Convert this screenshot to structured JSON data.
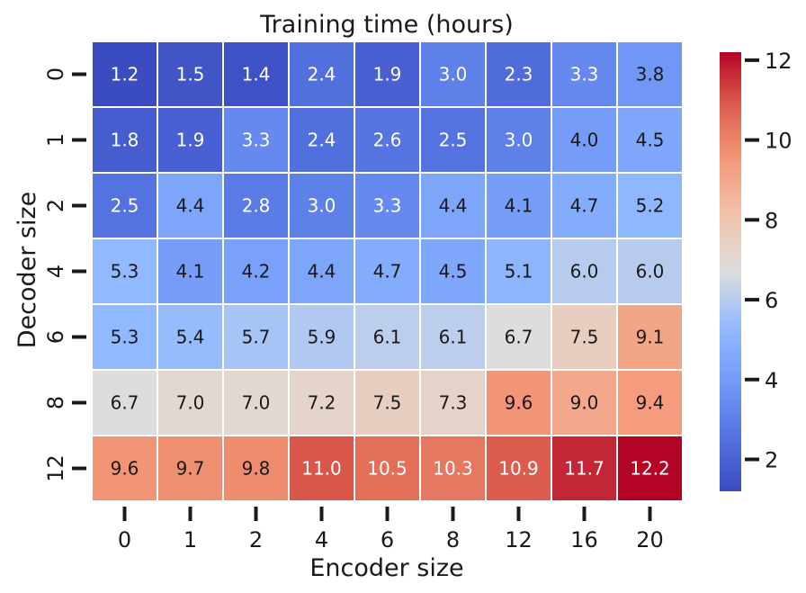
{
  "chart_data": {
    "type": "heatmap",
    "title": "Training time (hours)",
    "xlabel": "Encoder size",
    "ylabel": "Decoder size",
    "x_categories": [
      "0",
      "1",
      "2",
      "4",
      "6",
      "8",
      "12",
      "16",
      "20"
    ],
    "y_categories": [
      "0",
      "1",
      "2",
      "4",
      "6",
      "8",
      "12"
    ],
    "values": [
      [
        1.2,
        1.5,
        1.4,
        2.4,
        1.9,
        3.0,
        2.3,
        3.3,
        3.8
      ],
      [
        1.8,
        1.9,
        3.3,
        2.4,
        2.6,
        2.5,
        3.0,
        4.0,
        4.5
      ],
      [
        2.5,
        4.4,
        2.8,
        3.0,
        3.3,
        4.4,
        4.1,
        4.7,
        5.2
      ],
      [
        5.3,
        4.1,
        4.2,
        4.4,
        4.7,
        4.5,
        5.1,
        6.0,
        6.0
      ],
      [
        5.3,
        5.4,
        5.7,
        5.9,
        6.1,
        6.1,
        6.7,
        7.5,
        9.1
      ],
      [
        6.7,
        7.0,
        7.0,
        7.2,
        7.5,
        7.3,
        9.6,
        9.0,
        9.4
      ],
      [
        9.6,
        9.7,
        9.8,
        11.0,
        10.5,
        10.3,
        10.9,
        11.7,
        12.2
      ]
    ],
    "value_format": "one decimal",
    "colormap": "coolwarm",
    "color_range": [
      1.2,
      12.2
    ],
    "colorbar": {
      "ticks": [
        "2",
        "4",
        "6",
        "8",
        "10",
        "12"
      ],
      "tick_values": [
        2,
        4,
        6,
        8,
        10,
        12
      ]
    },
    "grid": false,
    "cell_border_color": "#ffffff",
    "text_colors": {
      "dark": "#1a1a1a",
      "light": "#ffffff"
    }
  }
}
